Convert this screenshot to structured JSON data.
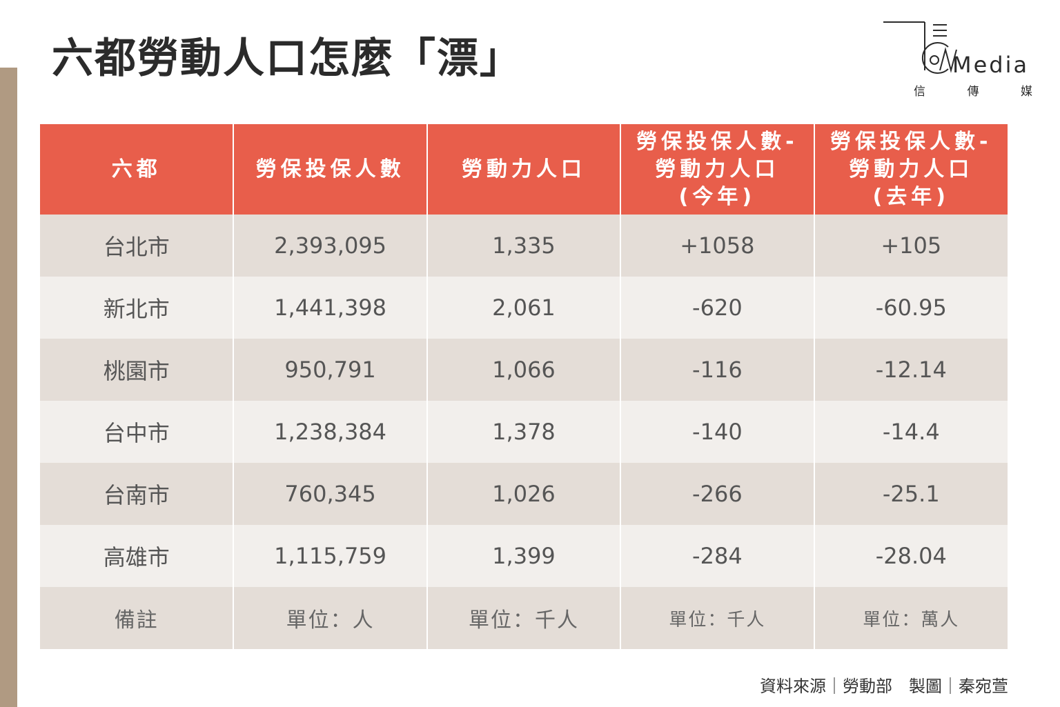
{
  "title": "六都勞動人口怎麼「漂」",
  "logo": {
    "text": "Media",
    "sub": [
      "信",
      "傳",
      "媒"
    ]
  },
  "chart_data": {
    "type": "table",
    "columns": [
      "六都",
      "勞保投保人數",
      "勞動力人口",
      "勞保投保人數-勞動力人口(今年)",
      "勞保投保人數-勞動力人口(去年)"
    ],
    "header_lines": [
      [
        "六都"
      ],
      [
        "勞保投保人數"
      ],
      [
        "勞動力人口"
      ],
      [
        "勞保投保人數-",
        "勞動力人口",
        "(今年)"
      ],
      [
        "勞保投保人數-",
        "勞動力人口",
        "(去年)"
      ]
    ],
    "rows": [
      [
        "台北市",
        "2,393,095",
        "1,335",
        "+1058",
        "+105"
      ],
      [
        "新北市",
        "1,441,398",
        "2,061",
        "-620",
        "-60.95"
      ],
      [
        "桃園市",
        "950,791",
        "1,066",
        "-116",
        "-12.14"
      ],
      [
        "台中市",
        "1,238,384",
        "1,378",
        "-140",
        "-14.4"
      ],
      [
        "台南市",
        "760,345",
        "1,026",
        "-266",
        "-25.1"
      ],
      [
        "高雄市",
        "1,115,759",
        "1,399",
        "-284",
        "-28.04"
      ]
    ],
    "note_row": [
      "備註",
      "單位：人",
      "單位：千人",
      "單位：千人",
      "單位：萬人"
    ]
  },
  "source": "資料來源｜勞動部　製圖｜秦宛萱",
  "colors": {
    "header": "#e85e4b",
    "row_odd": "#e4ddd7",
    "row_even": "#f2efec",
    "side_bar": "#b09a82"
  }
}
